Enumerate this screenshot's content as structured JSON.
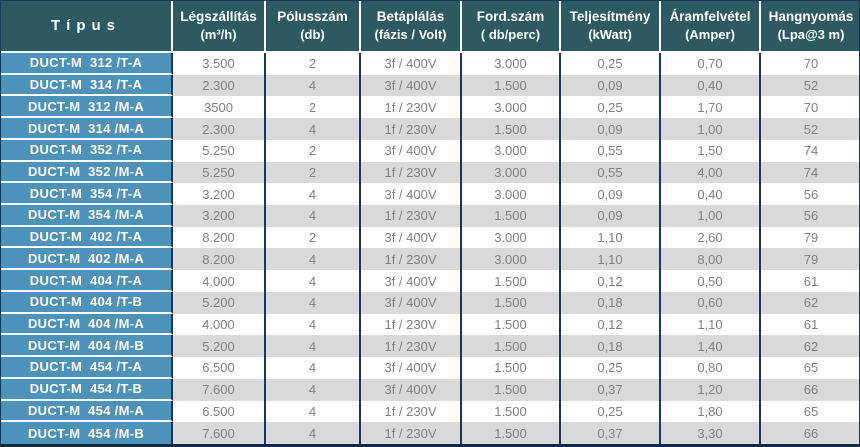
{
  "colors": {
    "header_bg": "#2d5a62",
    "type_col_bg": "#4e92ba",
    "stripe_bg": "#d9d9d9",
    "row_bg": "#ffffff",
    "border_navy": "#17375e",
    "header_text": "#ffffff",
    "data_text": "#7f7f7f"
  },
  "chart_data": {
    "type": "table",
    "title": "",
    "columns": [
      {
        "label": "Típus",
        "unit": ""
      },
      {
        "label": "Légszállítás",
        "unit": "(m³/h)"
      },
      {
        "label": "Pólusszám",
        "unit": "(db)"
      },
      {
        "label": "Betáplálás",
        "unit": "(fázis / Volt)"
      },
      {
        "label": "Ford.szám",
        "unit": "( db/perc)"
      },
      {
        "label": "Teljesítmény",
        "unit": "(kWatt)"
      },
      {
        "label": "Áramfelvétel",
        "unit": "(Amper)"
      },
      {
        "label": "Hangnyomás",
        "unit": "(Lpa@3 m)"
      }
    ],
    "rows": [
      [
        "DUCT-M  312 /T-A",
        "3.500",
        "2",
        "3f / 400V",
        "3.000",
        "0,25",
        "0,70",
        "70"
      ],
      [
        "DUCT-M  314 /T-A",
        "2.300",
        "4",
        "3f / 400V",
        "1.500",
        "0,09",
        "0,40",
        "52"
      ],
      [
        "DUCT-M  312 /M-A",
        "3500",
        "2",
        "1f / 230V",
        "3.000",
        "0,25",
        "1,70",
        "70"
      ],
      [
        "DUCT-M  314 /M-A",
        "2.300",
        "4",
        "1f / 230V",
        "1.500",
        "0,09",
        "1,00",
        "52"
      ],
      [
        "DUCT-M  352 /T-A",
        "5.250",
        "2",
        "3f / 400V",
        "3.000",
        "0,55",
        "1,50",
        "74"
      ],
      [
        "DUCT-M  352 /M-A",
        "5.250",
        "2",
        "1f / 230V",
        "3.000",
        "0,55",
        "4,00",
        "74"
      ],
      [
        "DUCT-M  354 /T-A",
        "3.200",
        "4",
        "3f / 400V",
        "3.000",
        "0,09",
        "0,40",
        "56"
      ],
      [
        "DUCT-M  354 /M-A",
        "3.200",
        "4",
        "1f / 230V",
        "1.500",
        "0,09",
        "1,00",
        "56"
      ],
      [
        "DUCT-M  402 /T-A",
        "8.200",
        "2",
        "3f / 400V",
        "3.000",
        "1,10",
        "2,60",
        "79"
      ],
      [
        "DUCT-M  402 /M-A",
        "8.200",
        "4",
        "1f / 230V",
        "3.000",
        "1,10",
        "8,00",
        "79"
      ],
      [
        "DUCT-M  404 /T-A",
        "4.000",
        "4",
        "3f / 400V",
        "1.500",
        "0,12",
        "0,50",
        "61"
      ],
      [
        "DUCT-M  404 /T-B",
        "5.200",
        "4",
        "3f / 400V",
        "1.500",
        "0,18",
        "0,60",
        "62"
      ],
      [
        "DUCT-M  404 /M-A",
        "4.000",
        "4",
        "1f / 230V",
        "1.500",
        "0,12",
        "1,10",
        "61"
      ],
      [
        "DUCT-M  404 /M-B",
        "5.200",
        "4",
        "1f / 230V",
        "1.500",
        "0,18",
        "1,40",
        "62"
      ],
      [
        "DUCT-M  454 /T-A",
        "6.500",
        "4",
        "3f / 400V",
        "1.500",
        "0,25",
        "0,80",
        "65"
      ],
      [
        "DUCT-M  454 /T-B",
        "7.600",
        "4",
        "3f / 400V",
        "1.500",
        "0,37",
        "1,20",
        "66"
      ],
      [
        "DUCT-M  454 /M-A",
        "6.500",
        "4",
        "1f / 230V",
        "1.500",
        "0,25",
        "1,80",
        "65"
      ],
      [
        "DUCT-M  454 /M-B",
        "7.600",
        "4",
        "1f / 230V",
        "1.500",
        "0,37",
        "3,30",
        "66"
      ]
    ]
  }
}
